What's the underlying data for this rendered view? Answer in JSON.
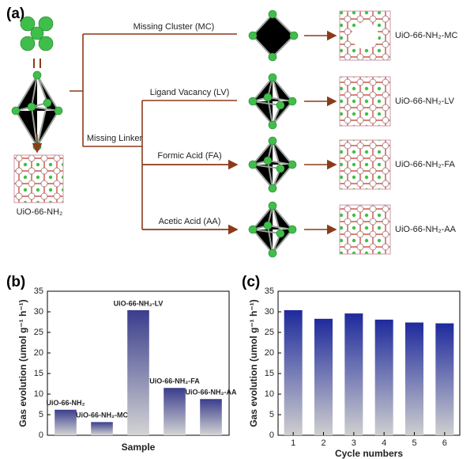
{
  "diagram": {
    "panel": "(a)",
    "branches": [
      "Missing Cluster (MC)",
      "Ligand Vacancy (LV)",
      "Formic Acid (FA)",
      "Acetic Acid (AA)"
    ],
    "missing_linker": "Missing Linker",
    "products": [
      "UiO-66-NH₂-MC",
      "UiO-66-NH₂-LV",
      "UiO-66-NH₂-FA",
      "UiO-66-NH₂-AA"
    ],
    "parent": "UiO-66-NH₂"
  },
  "chart_data": [
    {
      "type": "bar",
      "panel": "(b)",
      "xlabel": "Sample",
      "ylabel": "Gas evolution (umol g⁻¹ h⁻¹)",
      "categories": [
        "UiO-66-NH₂",
        "UiO-66-NH₂-MC",
        "UiO-66-NH₂-LV",
        "UiO-66-NH₂-FA",
        "UiO-66-NH₂-AA"
      ],
      "values": [
        6.2,
        3.2,
        30.4,
        11.5,
        8.8
      ],
      "color": "#3a3d8c",
      "color_bottom": "#d4d4d4",
      "category_labels": "above",
      "ylim": [
        0,
        35
      ],
      "yticks": [
        0,
        5,
        10,
        15,
        20,
        25,
        30,
        35
      ]
    },
    {
      "type": "bar",
      "panel": "(c)",
      "xlabel": "Cycle numbers",
      "ylabel": "Gas evolution (umol g⁻¹ h⁻¹)",
      "categories": [
        "1",
        "2",
        "3",
        "4",
        "5",
        "6"
      ],
      "values": [
        30.4,
        28.3,
        29.6,
        28.1,
        27.4,
        27.2
      ],
      "color": "#1e2a9c",
      "color_bottom": "#cfcfcf",
      "category_labels": "below",
      "ylim": [
        0,
        35
      ],
      "yticks": [
        0,
        5,
        10,
        15,
        20,
        25,
        30,
        35
      ]
    }
  ]
}
